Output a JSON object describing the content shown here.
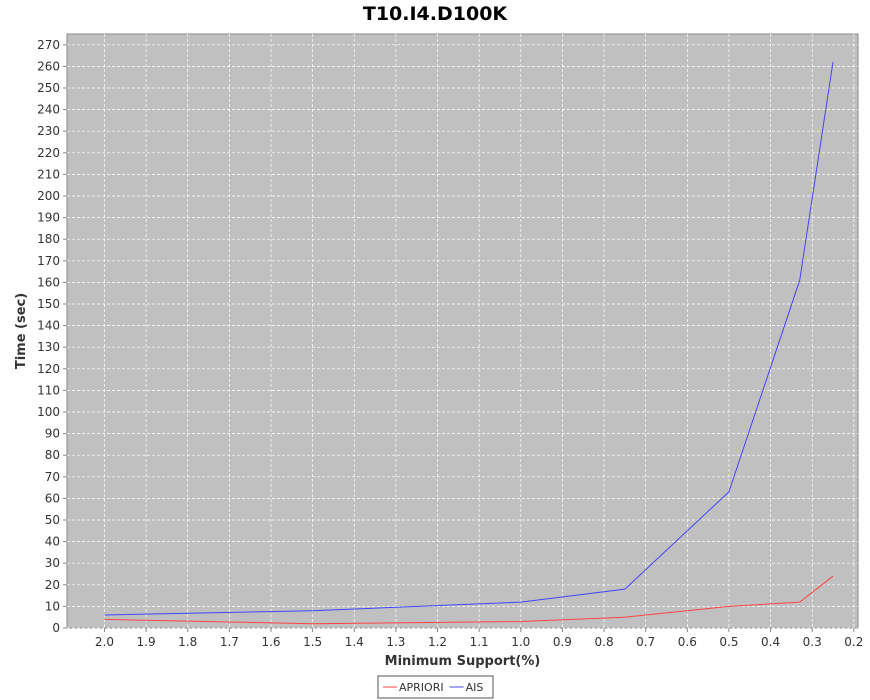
{
  "chart_data": {
    "type": "line",
    "title": "T10.I4.D100K",
    "xlabel": "Minimum Support(%)",
    "ylabel": "Time (sec)",
    "xlim": [
      2.09,
      0.19
    ],
    "x_reversed": true,
    "ylim": [
      0,
      275
    ],
    "xticks": [
      "2.0",
      "1.9",
      "1.8",
      "1.7",
      "1.6",
      "1.5",
      "1.4",
      "1.3",
      "1.2",
      "1.1",
      "1.0",
      "0.9",
      "0.8",
      "0.7",
      "0.6",
      "0.5",
      "0.4",
      "0.3",
      "0.2"
    ],
    "yticks": [
      "0",
      "10",
      "20",
      "30",
      "40",
      "50",
      "60",
      "70",
      "80",
      "90",
      "100",
      "110",
      "120",
      "130",
      "140",
      "150",
      "160",
      "170",
      "180",
      "190",
      "200",
      "210",
      "220",
      "230",
      "240",
      "250",
      "260",
      "270"
    ],
    "grid": true,
    "legend_position": "bottom-center",
    "series": [
      {
        "name": "APRIORI",
        "color": "#ff4444",
        "x": [
          2.0,
          1.5,
          1.0,
          0.75,
          0.5,
          0.33,
          0.25
        ],
        "y": [
          4,
          2,
          3,
          5,
          10,
          12,
          24
        ]
      },
      {
        "name": "AIS",
        "color": "#4444ff",
        "x": [
          2.0,
          1.5,
          1.0,
          0.75,
          0.5,
          0.33,
          0.25
        ],
        "y": [
          6,
          8,
          12,
          18,
          63,
          161,
          262
        ]
      }
    ]
  }
}
